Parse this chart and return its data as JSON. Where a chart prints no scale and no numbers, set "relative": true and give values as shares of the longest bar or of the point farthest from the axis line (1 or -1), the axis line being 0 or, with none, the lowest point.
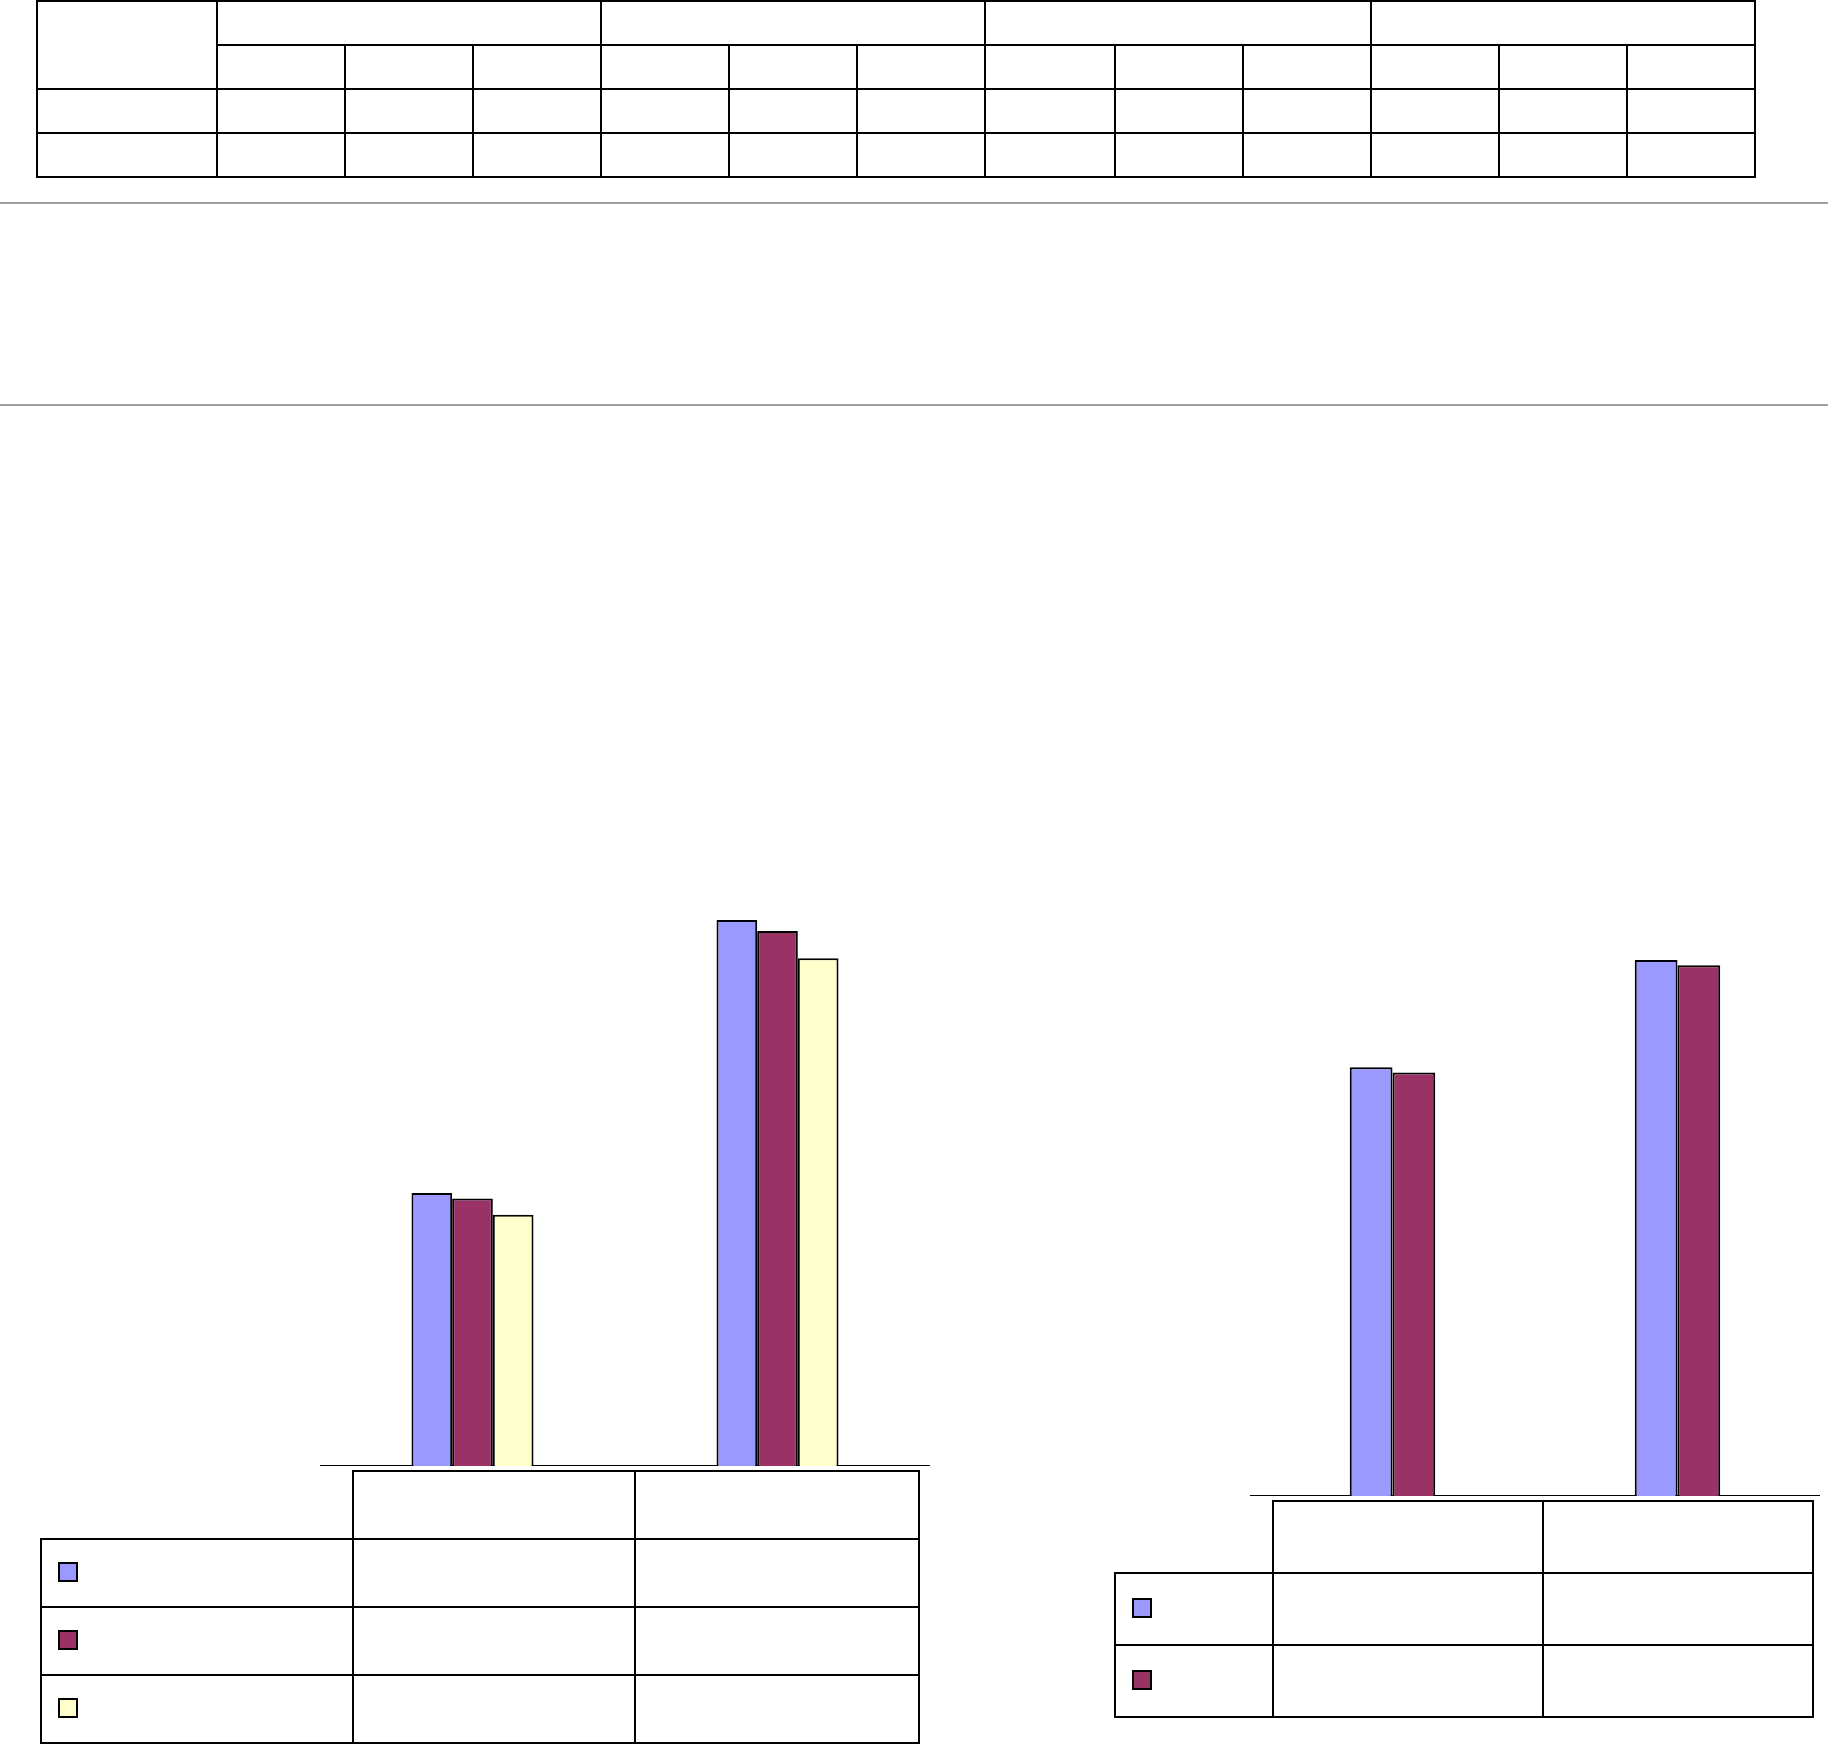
{
  "chart_data": [
    {
      "type": "bar",
      "relative": true,
      "categories": [
        null,
        null
      ],
      "series": [
        {
          "color": "#9999ff",
          "values": [
            0.5,
            1
          ]
        },
        {
          "color": "#993366",
          "values": [
            0.49,
            0.98
          ]
        },
        {
          "color": "#ffffcc",
          "values": [
            0.46,
            0.93
          ]
        }
      ]
    },
    {
      "type": "bar",
      "relative": true,
      "categories": [
        null,
        null
      ],
      "series": [
        {
          "color": "#9999ff",
          "values": [
            0.8,
            1
          ]
        },
        {
          "color": "#993366",
          "values": [
            0.79,
            0.99
          ]
        }
      ]
    }
  ]
}
